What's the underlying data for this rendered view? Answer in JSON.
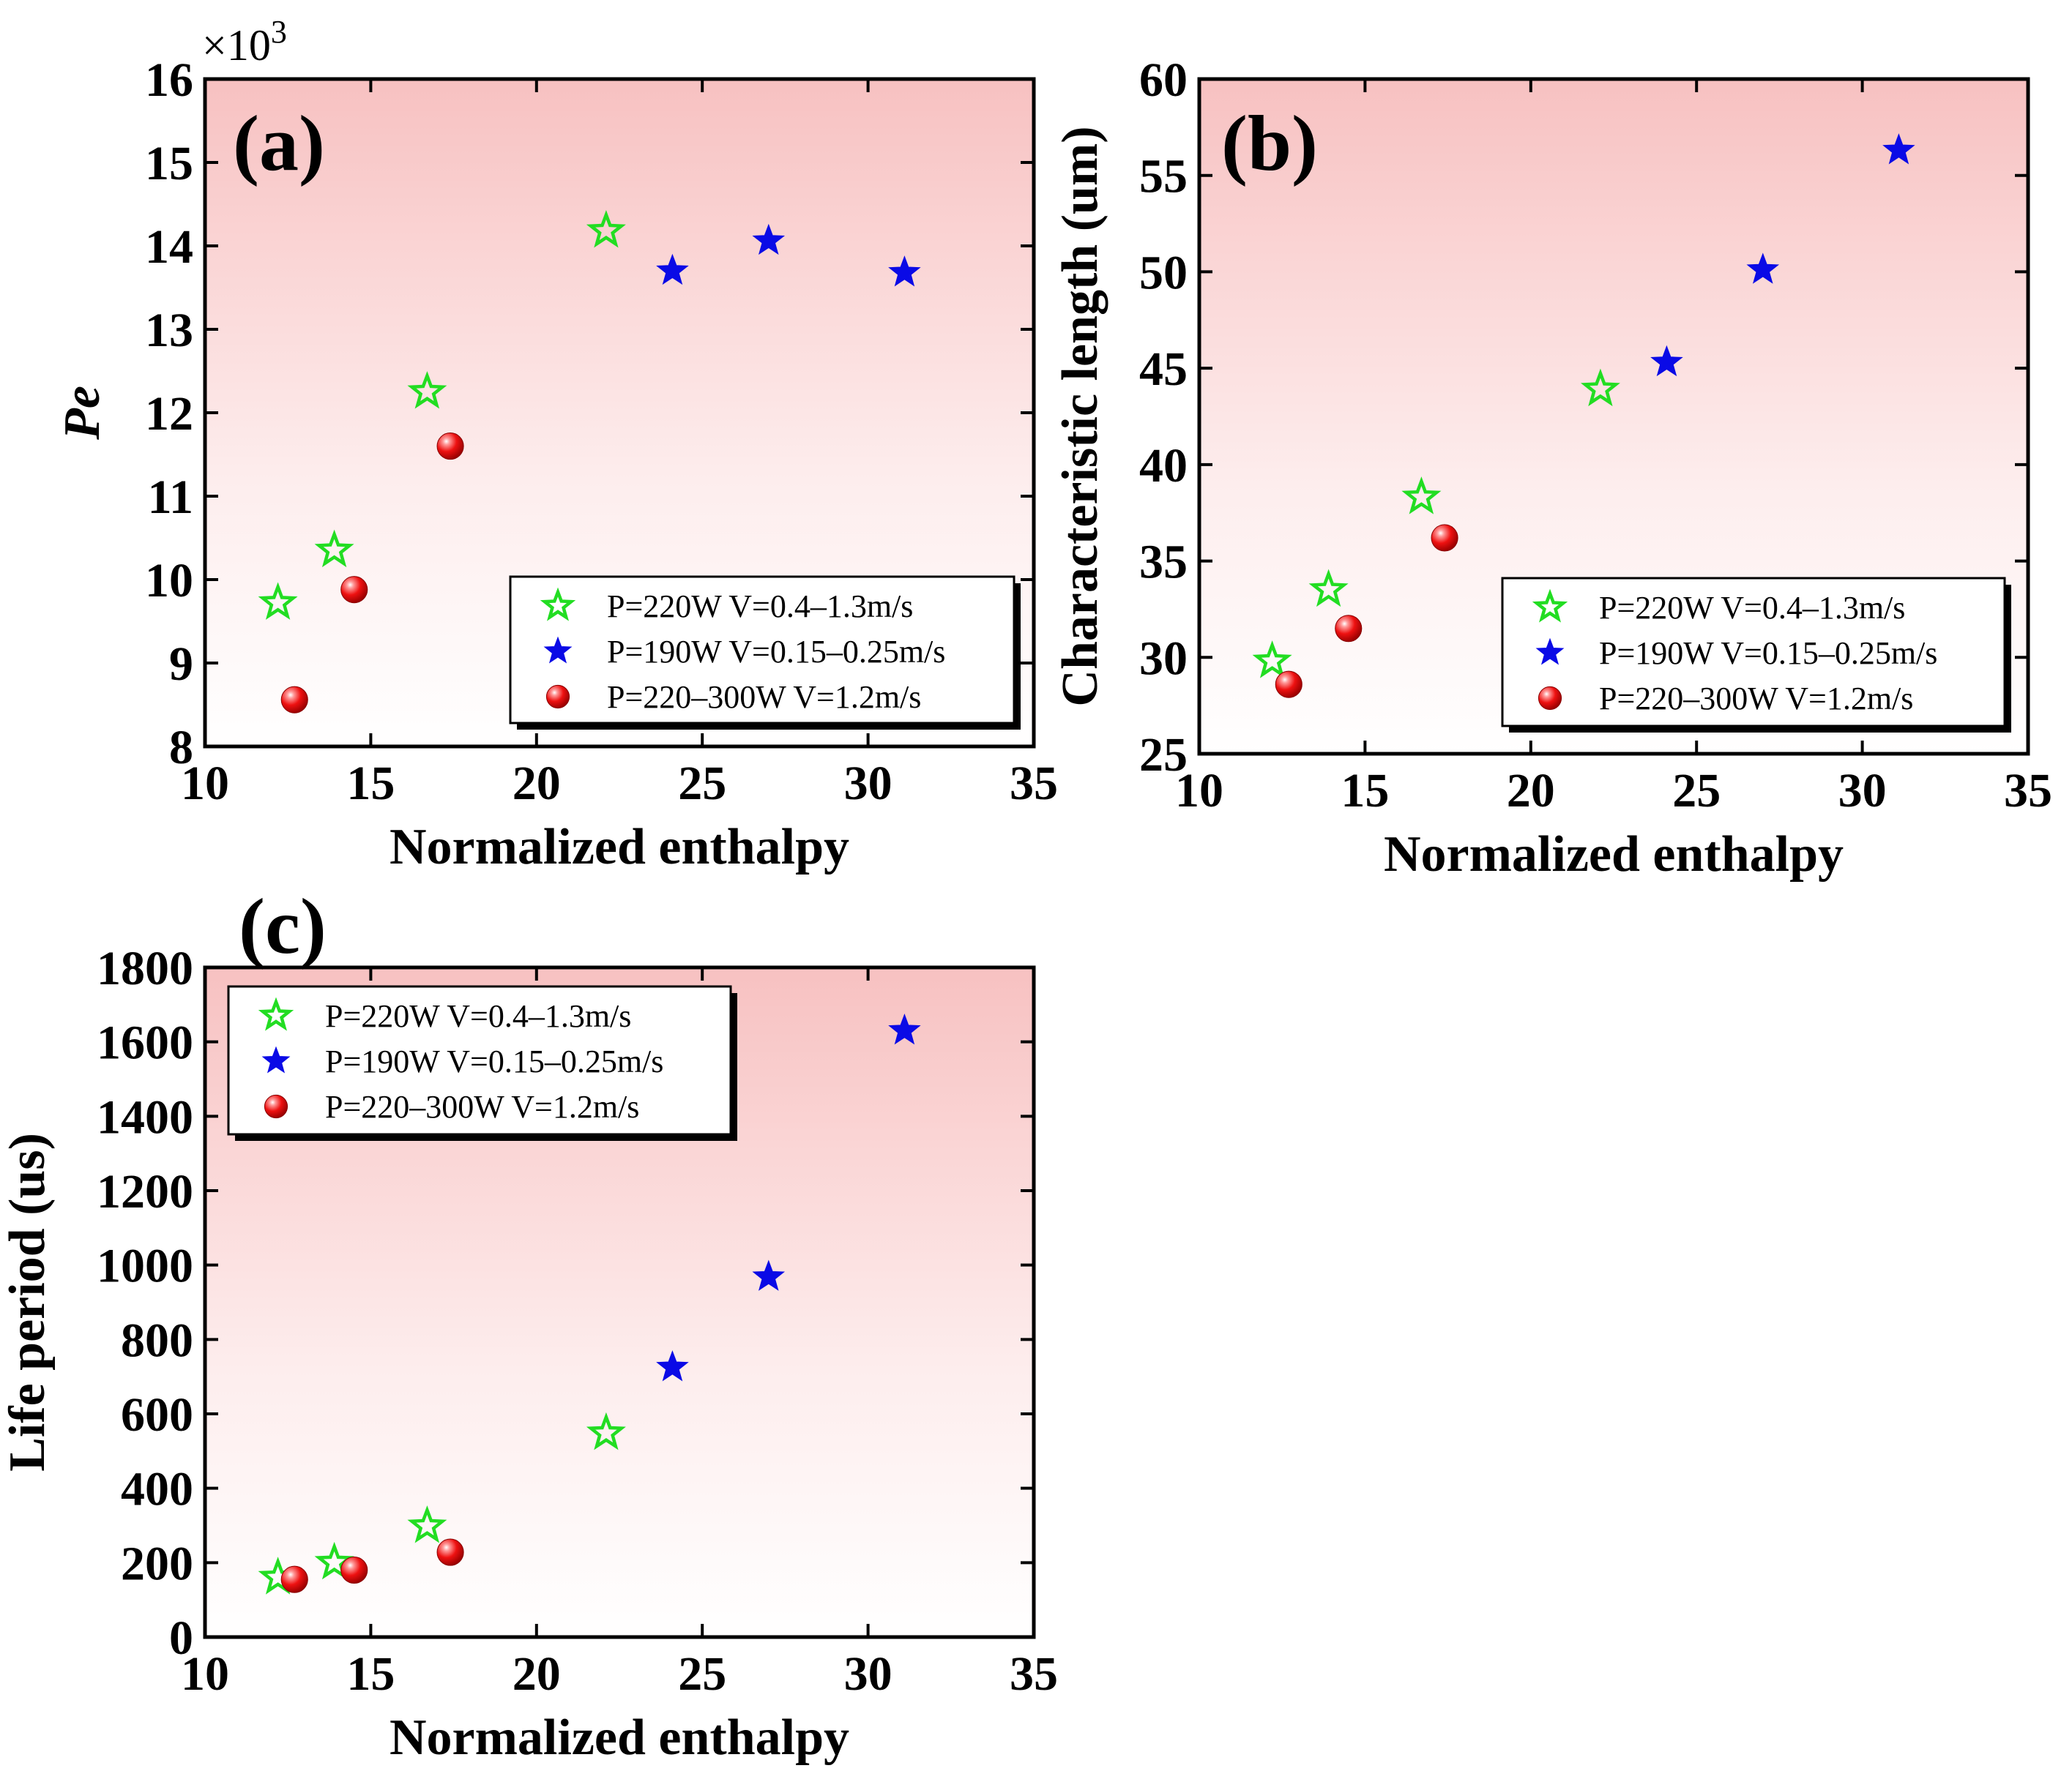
{
  "chart_data": [
    {
      "type": "scatter",
      "panel": "(a)",
      "title": "",
      "xlabel": "Normalized enthalpy",
      "ylabel": "Pe",
      "ylabel_style": "italic",
      "multiplier": "×10",
      "multiplier_exp": "3",
      "xlim": [
        10,
        35
      ],
      "ylim": [
        8,
        16
      ],
      "xticks": [
        10,
        15,
        20,
        25,
        30,
        35
      ],
      "yticks": [
        8,
        9,
        10,
        11,
        12,
        13,
        14,
        15,
        16
      ],
      "legend_position": "lower-right",
      "series": [
        {
          "name": "P=220W V=0.4–1.3m/s",
          "marker": "open-star",
          "color": "#22dd22",
          "x": [
            12.2,
            13.9,
            16.7,
            22.1
          ],
          "y": [
            9.72,
            10.35,
            12.25,
            14.18
          ]
        },
        {
          "name": "P=190W V=0.15–0.25m/s",
          "marker": "filled-star",
          "color": "#0a0ae6",
          "x": [
            24.1,
            27.0,
            31.1
          ],
          "y": [
            13.7,
            14.06,
            13.68
          ]
        },
        {
          "name": "P=220–300W V=1.2m/s",
          "marker": "sphere",
          "color": "#ee1111",
          "x": [
            12.7,
            14.5,
            17.4
          ],
          "y": [
            8.56,
            9.88,
            11.6
          ]
        }
      ]
    },
    {
      "type": "scatter",
      "panel": "(b)",
      "title": "",
      "xlabel": "Normalized enthalpy",
      "ylabel": "Characteristic length (um)",
      "ylabel_style": "bold",
      "xlim": [
        10,
        35
      ],
      "ylim": [
        25,
        60
      ],
      "xticks": [
        10,
        15,
        20,
        25,
        30,
        35
      ],
      "yticks": [
        25,
        30,
        35,
        40,
        45,
        50,
        55,
        60
      ],
      "legend_position": "lower-right",
      "series": [
        {
          "name": "P=220W V=0.4–1.3m/s",
          "marker": "open-star",
          "color": "#22dd22",
          "x": [
            12.2,
            13.9,
            16.7,
            22.1
          ],
          "y": [
            29.8,
            33.5,
            38.3,
            43.9
          ]
        },
        {
          "name": "P=190W V=0.15–0.25m/s",
          "marker": "filled-star",
          "color": "#0a0ae6",
          "x": [
            24.1,
            27.0,
            31.1
          ],
          "y": [
            45.3,
            50.1,
            56.3
          ]
        },
        {
          "name": "P=220–300W V=1.2m/s",
          "marker": "sphere",
          "color": "#ee1111",
          "x": [
            12.7,
            14.5,
            17.4
          ],
          "y": [
            28.6,
            31.5,
            36.2
          ]
        }
      ]
    },
    {
      "type": "scatter",
      "panel": "(c)",
      "title": "",
      "xlabel": "Normalized enthalpy",
      "ylabel": "Life period (us)",
      "ylabel_style": "bold",
      "xlim": [
        10,
        35
      ],
      "ylim": [
        0,
        1800
      ],
      "xticks": [
        10,
        15,
        20,
        25,
        30,
        35
      ],
      "yticks": [
        0,
        200,
        400,
        600,
        800,
        1000,
        1200,
        1400,
        1600,
        1800
      ],
      "legend_position": "top-left",
      "series": [
        {
          "name": "P=220W V=0.4–1.3m/s",
          "marker": "open-star",
          "color": "#22dd22",
          "x": [
            12.2,
            13.9,
            16.7,
            22.1
          ],
          "y": [
            160,
            200,
            298,
            548
          ]
        },
        {
          "name": "P=190W V=0.15–0.25m/s",
          "marker": "filled-star",
          "color": "#0a0ae6",
          "x": [
            24.1,
            27.0,
            31.1
          ],
          "y": [
            725,
            968,
            1630
          ]
        },
        {
          "name": "P=220–300W V=1.2m/s",
          "marker": "sphere",
          "color": "#ee1111",
          "x": [
            12.7,
            14.5,
            17.4
          ],
          "y": [
            155,
            180,
            228
          ]
        }
      ]
    }
  ],
  "colors": {
    "gradient_top": "#f7c1c1",
    "gradient_bottom": "#ffffff",
    "axis": "#000000"
  }
}
